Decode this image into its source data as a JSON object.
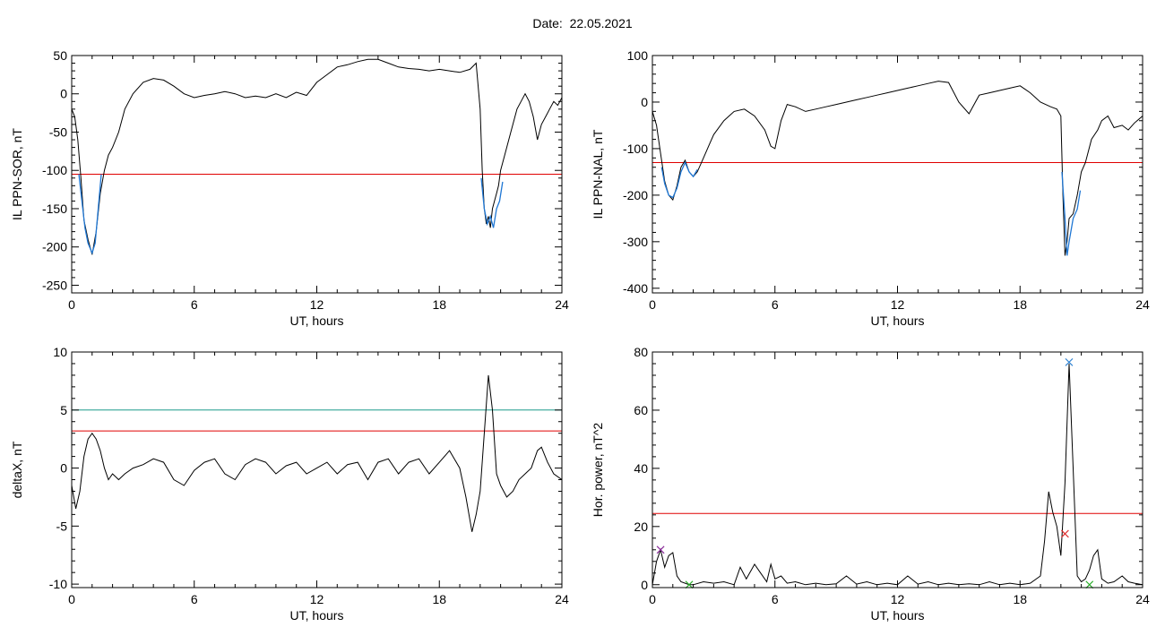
{
  "title": "Date:  22.05.2021",
  "colors": {
    "trace": "#000000",
    "highlight": "#1f77d4",
    "threshold": "#e00000",
    "threshold2": "#1a9a8a",
    "marker_blue": "#2a7fd0",
    "marker_red": "#e03030",
    "marker_purple": "#8a2a9a",
    "marker_green": "#22aa22"
  },
  "chart_data": [
    {
      "id": "sor",
      "type": "line",
      "xlabel": "UT, hours",
      "ylabel": "IL PPN-SOR, nT",
      "xlim": [
        0,
        24
      ],
      "ylim": [
        -260,
        50
      ],
      "xticks": [
        0,
        6,
        12,
        18,
        24
      ],
      "yticks": [
        -250,
        -200,
        -150,
        -100,
        -50,
        0,
        50
      ],
      "series": [
        {
          "color": "#000000",
          "x": [
            0,
            0.15,
            0.3,
            0.45,
            0.6,
            0.8,
            1.0,
            1.2,
            1.4,
            1.6,
            1.8,
            2.0,
            2.3,
            2.6,
            3.0,
            3.5,
            4.0,
            4.5,
            5.0,
            5.5,
            6.0,
            6.5,
            7.0,
            7.5,
            8.0,
            8.5,
            9.0,
            9.5,
            10.0,
            10.5,
            11.0,
            11.5,
            12.0,
            12.5,
            13.0,
            13.5,
            14.0,
            14.5,
            15.0,
            15.5,
            16.0,
            16.5,
            17.0,
            17.5,
            18.0,
            18.5,
            19.0,
            19.5,
            19.8,
            20.0,
            20.1,
            20.2,
            20.3,
            20.4,
            20.5,
            20.6,
            20.7,
            20.8,
            20.9,
            21.0,
            21.2,
            21.5,
            21.8,
            22.0,
            22.2,
            22.4,
            22.6,
            22.8,
            23.0,
            23.2,
            23.4,
            23.6,
            23.8,
            24.0
          ],
          "y": [
            -20,
            -30,
            -60,
            -110,
            -165,
            -190,
            -210,
            -180,
            -130,
            -100,
            -80,
            -70,
            -50,
            -20,
            0,
            15,
            20,
            18,
            10,
            0,
            -5,
            -2,
            0,
            3,
            0,
            -5,
            -3,
            -5,
            0,
            -5,
            2,
            -2,
            15,
            25,
            35,
            38,
            42,
            45,
            45,
            40,
            35,
            33,
            32,
            30,
            32,
            30,
            28,
            32,
            40,
            -20,
            -100,
            -150,
            -170,
            -160,
            -175,
            -150,
            -140,
            -130,
            -120,
            -100,
            -80,
            -50,
            -20,
            -10,
            0,
            -10,
            -30,
            -60,
            -40,
            -30,
            -20,
            -10,
            -15,
            -5
          ]
        },
        {
          "color": "#1f77d4",
          "x": [
            0.35,
            0.5,
            0.65,
            0.8,
            1.0,
            1.15,
            1.3,
            1.45
          ],
          "y": [
            -105,
            -140,
            -175,
            -195,
            -208,
            -195,
            -150,
            -105
          ]
        },
        {
          "color": "#1f77d4",
          "x": [
            20.05,
            20.2,
            20.35,
            20.5,
            20.65,
            20.8,
            20.95,
            21.1
          ],
          "y": [
            -110,
            -150,
            -170,
            -160,
            -175,
            -150,
            -140,
            -115
          ]
        }
      ],
      "thresholds": [
        {
          "y": -105,
          "color": "#e00000"
        }
      ]
    },
    {
      "id": "nal",
      "type": "line",
      "xlabel": "UT, hours",
      "ylabel": "IL PPN-NAL, nT",
      "xlim": [
        0,
        24
      ],
      "ylim": [
        -410,
        100
      ],
      "xticks": [
        0,
        6,
        12,
        18,
        24
      ],
      "yticks": [
        -400,
        -300,
        -200,
        -100,
        0,
        100
      ],
      "series": [
        {
          "color": "#000000",
          "x": [
            0,
            0.2,
            0.4,
            0.6,
            0.8,
            1.0,
            1.2,
            1.4,
            1.6,
            1.8,
            2.0,
            2.2,
            2.5,
            2.8,
            3.0,
            3.5,
            4.0,
            4.5,
            5.0,
            5.5,
            5.8,
            6.0,
            6.3,
            6.6,
            7.0,
            7.5,
            8.0,
            8.5,
            9.0,
            9.5,
            10.0,
            10.5,
            11.0,
            11.5,
            12.0,
            12.5,
            13.0,
            13.5,
            14.0,
            14.5,
            15.0,
            15.5,
            16.0,
            16.5,
            17.0,
            17.5,
            18.0,
            18.5,
            19.0,
            19.5,
            19.8,
            20.0,
            20.1,
            20.2,
            20.3,
            20.4,
            20.6,
            20.8,
            21.0,
            21.2,
            21.5,
            21.8,
            22.0,
            22.3,
            22.6,
            23.0,
            23.3,
            23.6,
            24.0
          ],
          "y": [
            -20,
            -50,
            -110,
            -170,
            -200,
            -210,
            -180,
            -140,
            -125,
            -150,
            -160,
            -150,
            -120,
            -90,
            -70,
            -40,
            -20,
            -15,
            -30,
            -60,
            -95,
            -100,
            -40,
            -5,
            -10,
            -20,
            -15,
            -10,
            -5,
            0,
            5,
            10,
            15,
            20,
            25,
            30,
            35,
            40,
            45,
            42,
            0,
            -25,
            15,
            20,
            25,
            30,
            35,
            20,
            0,
            -10,
            -15,
            -30,
            -200,
            -330,
            -300,
            -250,
            -240,
            -200,
            -150,
            -130,
            -80,
            -60,
            -40,
            -30,
            -55,
            -50,
            -60,
            -45,
            -30
          ]
        },
        {
          "color": "#1f77d4",
          "x": [
            0.45,
            0.6,
            0.8,
            1.0,
            1.2,
            1.4,
            1.6,
            1.8,
            2.0,
            2.2
          ],
          "y": [
            -140,
            -175,
            -200,
            -205,
            -185,
            -150,
            -130,
            -150,
            -160,
            -145
          ]
        },
        {
          "color": "#1f77d4",
          "x": [
            20.05,
            20.2,
            20.3,
            20.4,
            20.6,
            20.8,
            20.95
          ],
          "y": [
            -150,
            -250,
            -330,
            -300,
            -250,
            -230,
            -190
          ]
        }
      ],
      "thresholds": [
        {
          "y": -130,
          "color": "#e00000"
        }
      ]
    },
    {
      "id": "deltax",
      "type": "line",
      "xlabel": "UT, hours",
      "ylabel": "deltaX, nT",
      "xlim": [
        0,
        24
      ],
      "ylim": [
        -10.3,
        10
      ],
      "xticks": [
        0,
        6,
        12,
        18,
        24
      ],
      "yticks": [
        -10,
        -5,
        0,
        5,
        10
      ],
      "series": [
        {
          "color": "#000000",
          "x": [
            0,
            0.2,
            0.4,
            0.6,
            0.8,
            1.0,
            1.2,
            1.4,
            1.6,
            1.8,
            2.0,
            2.3,
            2.6,
            3.0,
            3.5,
            4.0,
            4.5,
            5.0,
            5.5,
            6.0,
            6.5,
            7.0,
            7.5,
            8.0,
            8.5,
            9.0,
            9.5,
            10.0,
            10.5,
            11.0,
            11.5,
            12.0,
            12.5,
            13.0,
            13.5,
            14.0,
            14.5,
            15.0,
            15.5,
            16.0,
            16.5,
            17.0,
            17.5,
            18.0,
            18.5,
            19.0,
            19.3,
            19.6,
            19.8,
            20.0,
            20.2,
            20.4,
            20.6,
            20.8,
            21.0,
            21.3,
            21.6,
            21.9,
            22.2,
            22.5,
            22.8,
            23.0,
            23.3,
            23.6,
            24.0
          ],
          "y": [
            -1.5,
            -3.5,
            -2.0,
            1.0,
            2.5,
            3.0,
            2.5,
            1.5,
            0,
            -1.0,
            -0.5,
            -1.0,
            -0.5,
            0,
            0.3,
            0.8,
            0.5,
            -1.0,
            -1.5,
            -0.2,
            0.5,
            0.8,
            -0.5,
            -1.0,
            0.3,
            0.8,
            0.5,
            -0.5,
            0.2,
            0.5,
            -0.5,
            0,
            0.5,
            -0.5,
            0.3,
            0.5,
            -1.0,
            0.5,
            0.8,
            -0.5,
            0.5,
            0.8,
            -0.5,
            0.5,
            1.5,
            0,
            -2.5,
            -5.5,
            -4.0,
            -2.0,
            3.0,
            8.0,
            5.0,
            -0.5,
            -1.5,
            -2.5,
            -2.0,
            -1.0,
            -0.5,
            0,
            1.5,
            1.8,
            0.5,
            -0.5,
            -1.0
          ]
        }
      ],
      "thresholds": [
        {
          "y": 5.0,
          "color": "#1a9a8a"
        },
        {
          "y": 3.2,
          "color": "#e00000"
        }
      ]
    },
    {
      "id": "power",
      "type": "line",
      "xlabel": "UT, hours",
      "ylabel": "Hor. power, nT^2",
      "xlim": [
        0,
        24
      ],
      "ylim": [
        -1,
        80
      ],
      "xticks": [
        0,
        6,
        12,
        18,
        24
      ],
      "yticks": [
        0,
        20,
        40,
        60,
        80
      ],
      "series": [
        {
          "color": "#000000",
          "x": [
            0,
            0.2,
            0.4,
            0.6,
            0.8,
            1.0,
            1.2,
            1.4,
            1.6,
            1.8,
            2.0,
            2.5,
            3.0,
            3.5,
            4.0,
            4.3,
            4.6,
            5.0,
            5.3,
            5.6,
            5.8,
            6.0,
            6.3,
            6.6,
            7.0,
            7.5,
            8.0,
            8.5,
            9.0,
            9.5,
            10.0,
            10.5,
            11.0,
            11.5,
            12.0,
            12.5,
            13.0,
            13.5,
            14.0,
            14.5,
            15.0,
            15.5,
            16.0,
            16.5,
            17.0,
            17.5,
            18.0,
            18.5,
            19.0,
            19.2,
            19.4,
            19.6,
            19.8,
            20.0,
            20.2,
            20.4,
            20.6,
            20.8,
            21.0,
            21.2,
            21.4,
            21.6,
            21.8,
            22.0,
            22.3,
            22.6,
            23.0,
            23.3,
            23.6,
            24.0
          ],
          "y": [
            0,
            8,
            12,
            6,
            10,
            11,
            3,
            1,
            0.5,
            0,
            0,
            1,
            0.5,
            1,
            0,
            6,
            2,
            7,
            4,
            1,
            7,
            2,
            3,
            0.5,
            1,
            0,
            0.5,
            0,
            0.3,
            3,
            0.2,
            1,
            0,
            0.5,
            0,
            3,
            0.2,
            1,
            0,
            0.5,
            0,
            0.3,
            0,
            1,
            0,
            0.5,
            0,
            0.5,
            3,
            15,
            32,
            25,
            20,
            10,
            35,
            76,
            40,
            3,
            1,
            2,
            5,
            10,
            12,
            2,
            0.5,
            1,
            3,
            1,
            0.5,
            0
          ]
        }
      ],
      "thresholds": [
        {
          "y": 24.5,
          "color": "#e00000"
        }
      ],
      "markers": [
        {
          "x": 0.4,
          "y": 12,
          "color": "#8a2a9a"
        },
        {
          "x": 20.4,
          "y": 76.5,
          "color": "#2a7fd0"
        },
        {
          "x": 20.2,
          "y": 17.5,
          "color": "#e03030"
        },
        {
          "x": 21.4,
          "y": 0,
          "color": "#22aa22"
        },
        {
          "x": 1.8,
          "y": 0,
          "color": "#22aa22"
        }
      ]
    }
  ]
}
